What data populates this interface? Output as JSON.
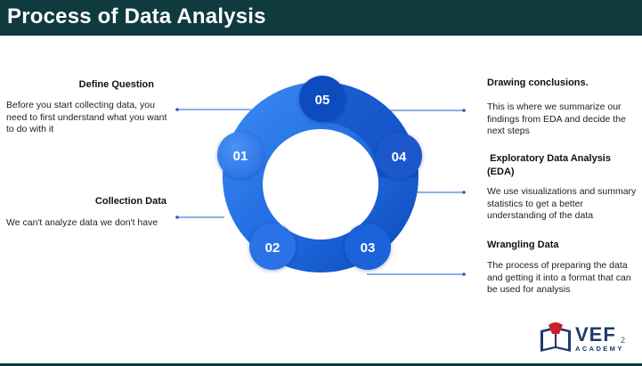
{
  "title": "Process of Data Analysis",
  "steps": [
    {
      "number": "01",
      "heading": "Define Question",
      "text": "Before you start collecting data, you need to first understand what you want to do with it"
    },
    {
      "number": "02",
      "heading": "Collection Data",
      "text": "We can't analyze data we don't have"
    },
    {
      "number": "03",
      "heading": "Wrangling Data",
      "text": "The process of preparing the data and getting it into a format that can be used for analysis"
    },
    {
      "number": "04",
      "heading": " Exploratory Data Analysis (EDA)",
      "text": "We use visualizations and summary statistics to get a better understanding of the data"
    },
    {
      "number": "05",
      "heading": "Drawing conclusions.",
      "text": "This is where we summarize our findings from EDA and decide the next steps"
    }
  ],
  "colors": {
    "header": "#0f3a3e",
    "ring_light": "#3a86f0",
    "ring_mid": "#1f6ae0",
    "ring_dark": "#0d47b8",
    "connector": "#1f5fc8"
  },
  "logo": {
    "text": "VEF",
    "subtext": "ACADEMY"
  },
  "page_number": "2"
}
